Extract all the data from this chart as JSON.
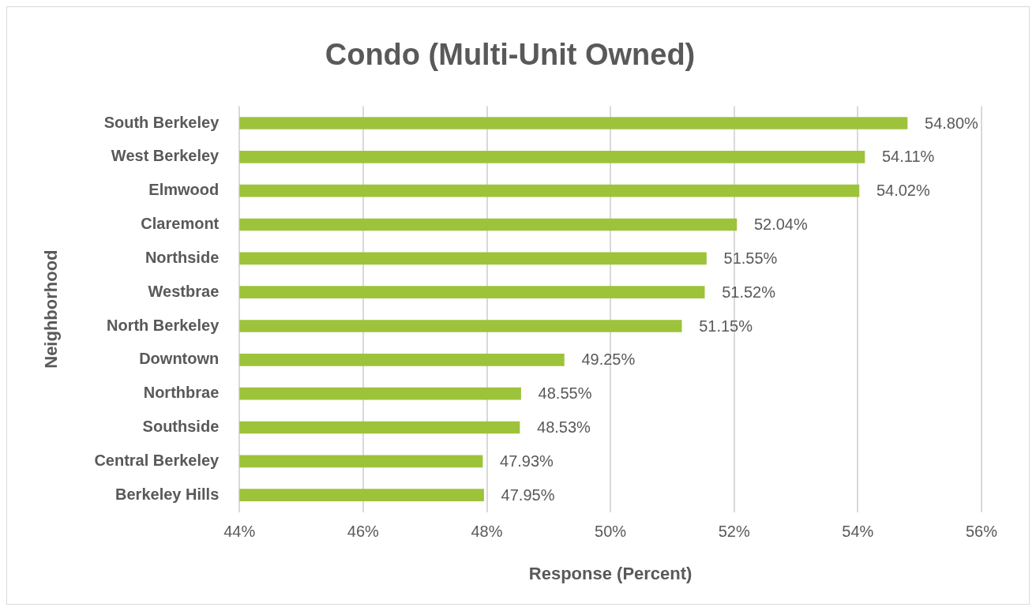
{
  "chart_data": {
    "type": "bar",
    "orientation": "horizontal",
    "title": "Condo (Multi-Unit Owned)",
    "xlabel": "Response (Percent)",
    "ylabel": "Neighborhood",
    "categories": [
      "South Berkeley",
      "West Berkeley",
      "Elmwood",
      "Claremont",
      "Northside",
      "Westbrae",
      "North Berkeley",
      "Downtown",
      "Northbrae",
      "Southside",
      "Central Berkeley",
      "Berkeley Hills"
    ],
    "values": [
      54.8,
      54.11,
      54.02,
      52.04,
      51.55,
      51.52,
      51.15,
      49.25,
      48.55,
      48.53,
      47.93,
      47.95
    ],
    "value_labels": [
      "54.80%",
      "54.11%",
      "54.02%",
      "52.04%",
      "51.55%",
      "51.52%",
      "51.15%",
      "49.25%",
      "48.55%",
      "48.53%",
      "47.93%",
      "47.95%"
    ],
    "color": "#9dc33b",
    "xlim": [
      44,
      56
    ],
    "xticks": [
      {
        "value": 44,
        "label": "44%"
      },
      {
        "value": 46,
        "label": "46%"
      },
      {
        "value": 48,
        "label": "48%"
      },
      {
        "value": 50,
        "label": "50%"
      },
      {
        "value": 52,
        "label": "52%"
      },
      {
        "value": 54,
        "label": "54%"
      },
      {
        "value": 56,
        "label": "56%"
      }
    ],
    "grid": "x",
    "legend": false
  }
}
